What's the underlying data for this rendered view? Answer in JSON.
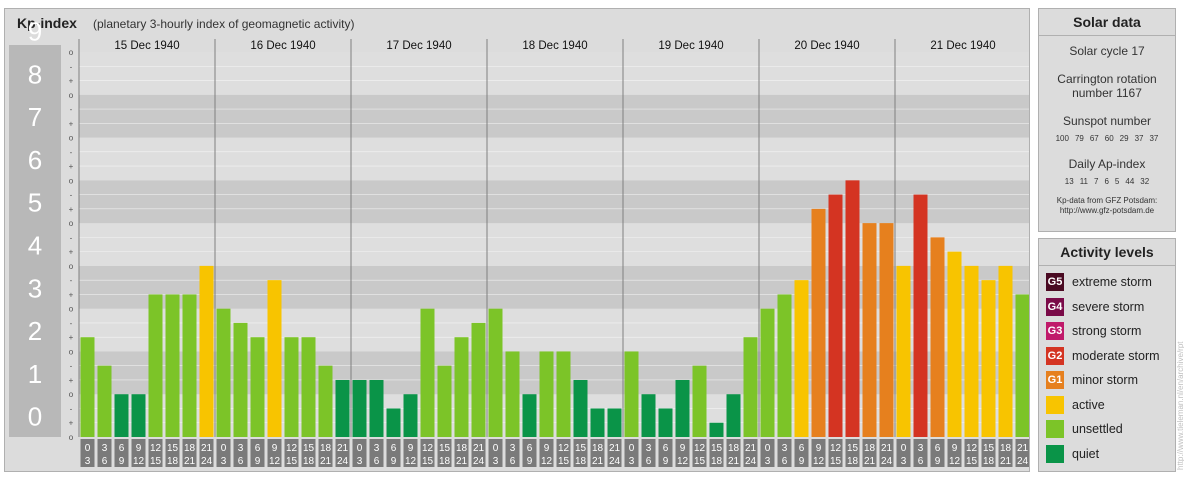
{
  "title": {
    "main": "Kp-index",
    "subtitle": "(planetary 3-hourly index of geomagnetic activity)"
  },
  "chart_data": {
    "type": "bar",
    "ylim": [
      0,
      9
    ],
    "y_ticks": [
      "0",
      "1",
      "2",
      "3",
      "4",
      "5",
      "6",
      "7",
      "8",
      "9"
    ],
    "minor_ticks": [
      "o",
      "+",
      "-",
      "o",
      "+",
      "-",
      "o",
      "+",
      "-",
      "o",
      "+",
      "-",
      "o",
      "+",
      "-",
      "o",
      "+",
      "-",
      "o",
      "+",
      "-",
      "o",
      "+",
      "-",
      "o",
      "+",
      "-",
      "o"
    ],
    "days": [
      "15 Dec 1940",
      "16 Dec 1940",
      "17 Dec 1940",
      "18 Dec 1940",
      "19 Dec 1940",
      "20 Dec 1940",
      "21 Dec 1940"
    ],
    "intervals": [
      [
        "0",
        "3"
      ],
      [
        "3",
        "6"
      ],
      [
        "6",
        "9"
      ],
      [
        "9",
        "12"
      ],
      [
        "12",
        "15"
      ],
      [
        "15",
        "18"
      ],
      [
        "18",
        "21"
      ],
      [
        "21",
        "24"
      ]
    ],
    "values": [
      [
        2.333,
        1.667,
        1.0,
        1.0,
        3.333,
        3.333,
        3.333,
        4.0
      ],
      [
        3.0,
        2.667,
        2.333,
        3.667,
        2.333,
        2.333,
        1.667,
        1.333
      ],
      [
        1.333,
        1.333,
        0.667,
        1.0,
        3.0,
        1.667,
        2.333,
        2.667
      ],
      [
        3.0,
        2.0,
        1.0,
        2.0,
        2.0,
        1.333,
        0.667,
        0.667
      ],
      [
        2.0,
        1.0,
        0.667,
        1.333,
        1.667,
        0.333,
        1.0,
        2.333
      ],
      [
        3.0,
        3.333,
        3.667,
        5.333,
        5.667,
        6.0,
        5.0,
        5.0
      ],
      [
        4.0,
        5.667,
        4.667,
        4.333,
        4.0,
        3.667,
        4.0,
        3.333
      ]
    ]
  },
  "solar": {
    "title": "Solar data",
    "cycle": "Solar cycle 17",
    "carrington_line1": "Carrington rotation",
    "carrington_line2": "number 1167",
    "sunspot_title": "Sunspot number",
    "sunspot_values": [
      "100",
      "79",
      "67",
      "60",
      "29",
      "37",
      "37"
    ],
    "ap_title": "Daily Ap-index",
    "ap_values": [
      "13",
      "11",
      "7",
      "6",
      "5",
      "44",
      "32"
    ],
    "credit_line1": "Kp-data from GFZ Potsdam:",
    "credit_line2": "http://www.gfz-potsdam.de"
  },
  "legend": {
    "title": "Activity levels",
    "items": [
      {
        "code": "G5",
        "label": "extreme storm",
        "color": "#4a0a22"
      },
      {
        "code": "G4",
        "label": "severe storm",
        "color": "#7a0a48"
      },
      {
        "code": "G3",
        "label": "strong storm",
        "color": "#c01a6a"
      },
      {
        "code": "G2",
        "label": "moderate storm",
        "color": "#d43422"
      },
      {
        "code": "G1",
        "label": "minor storm",
        "color": "#e6801e"
      },
      {
        "code": "",
        "label": "active",
        "color": "#f8c400"
      },
      {
        "code": "",
        "label": "unsettled",
        "color": "#7cc428"
      },
      {
        "code": "",
        "label": "quiet",
        "color": "#0a9448"
      }
    ]
  },
  "watermark": "http://www.tieleman.nl/en/archive/rpt"
}
